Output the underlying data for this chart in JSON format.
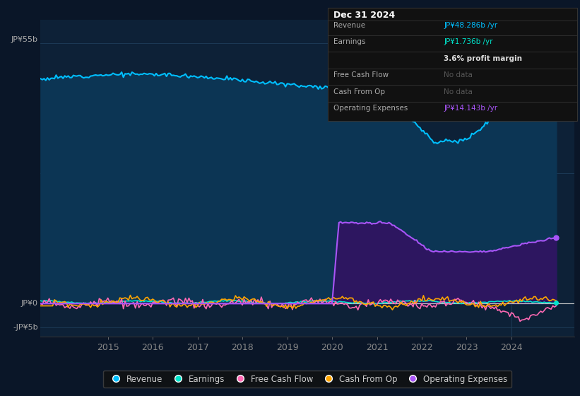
{
  "background_color": "#0a1628",
  "plot_bg_color": "#0d2137",
  "header_bg_color": "#0a1628",
  "title": "Dec 31 2024",
  "y_label_top": "JP¥55b",
  "y_label_zero": "JP¥0",
  "y_label_neg": "-JP¥5b",
  "x_ticks": [
    "2015",
    "2016",
    "2017",
    "2018",
    "2019",
    "2020",
    "2021",
    "2022",
    "2023",
    "2024"
  ],
  "ylim": [
    -7000000000.0,
    60000000000.0
  ],
  "revenue_color": "#00bfff",
  "earnings_color": "#00e5cc",
  "free_cash_flow_color": "#ff69b4",
  "cash_from_op_color": "#ffa500",
  "op_expenses_color": "#a855f7",
  "revenue_fill_color": "#0c3554",
  "op_expenses_fill_color": "#2d1660",
  "legend_labels": [
    "Revenue",
    "Earnings",
    "Free Cash Flow",
    "Cash From Op",
    "Operating Expenses"
  ],
  "info_box_bg": "#111111",
  "info_box_border": "#333333",
  "info_box_title": "Dec 31 2024",
  "info_box_revenue_label": "Revenue",
  "info_box_revenue_value": "JP¥48.286b /yr",
  "info_box_earnings_label": "Earnings",
  "info_box_earnings_value": "JP¥1.736b /yr",
  "info_box_margin": "3.6% profit margin",
  "info_box_fcf_label": "Free Cash Flow",
  "info_box_fcf_value": "No data",
  "info_box_cfo_label": "Cash From Op",
  "info_box_cfo_value": "No data",
  "info_box_opex_label": "Operating Expenses",
  "info_box_opex_value": "JP¥14.143b /yr"
}
